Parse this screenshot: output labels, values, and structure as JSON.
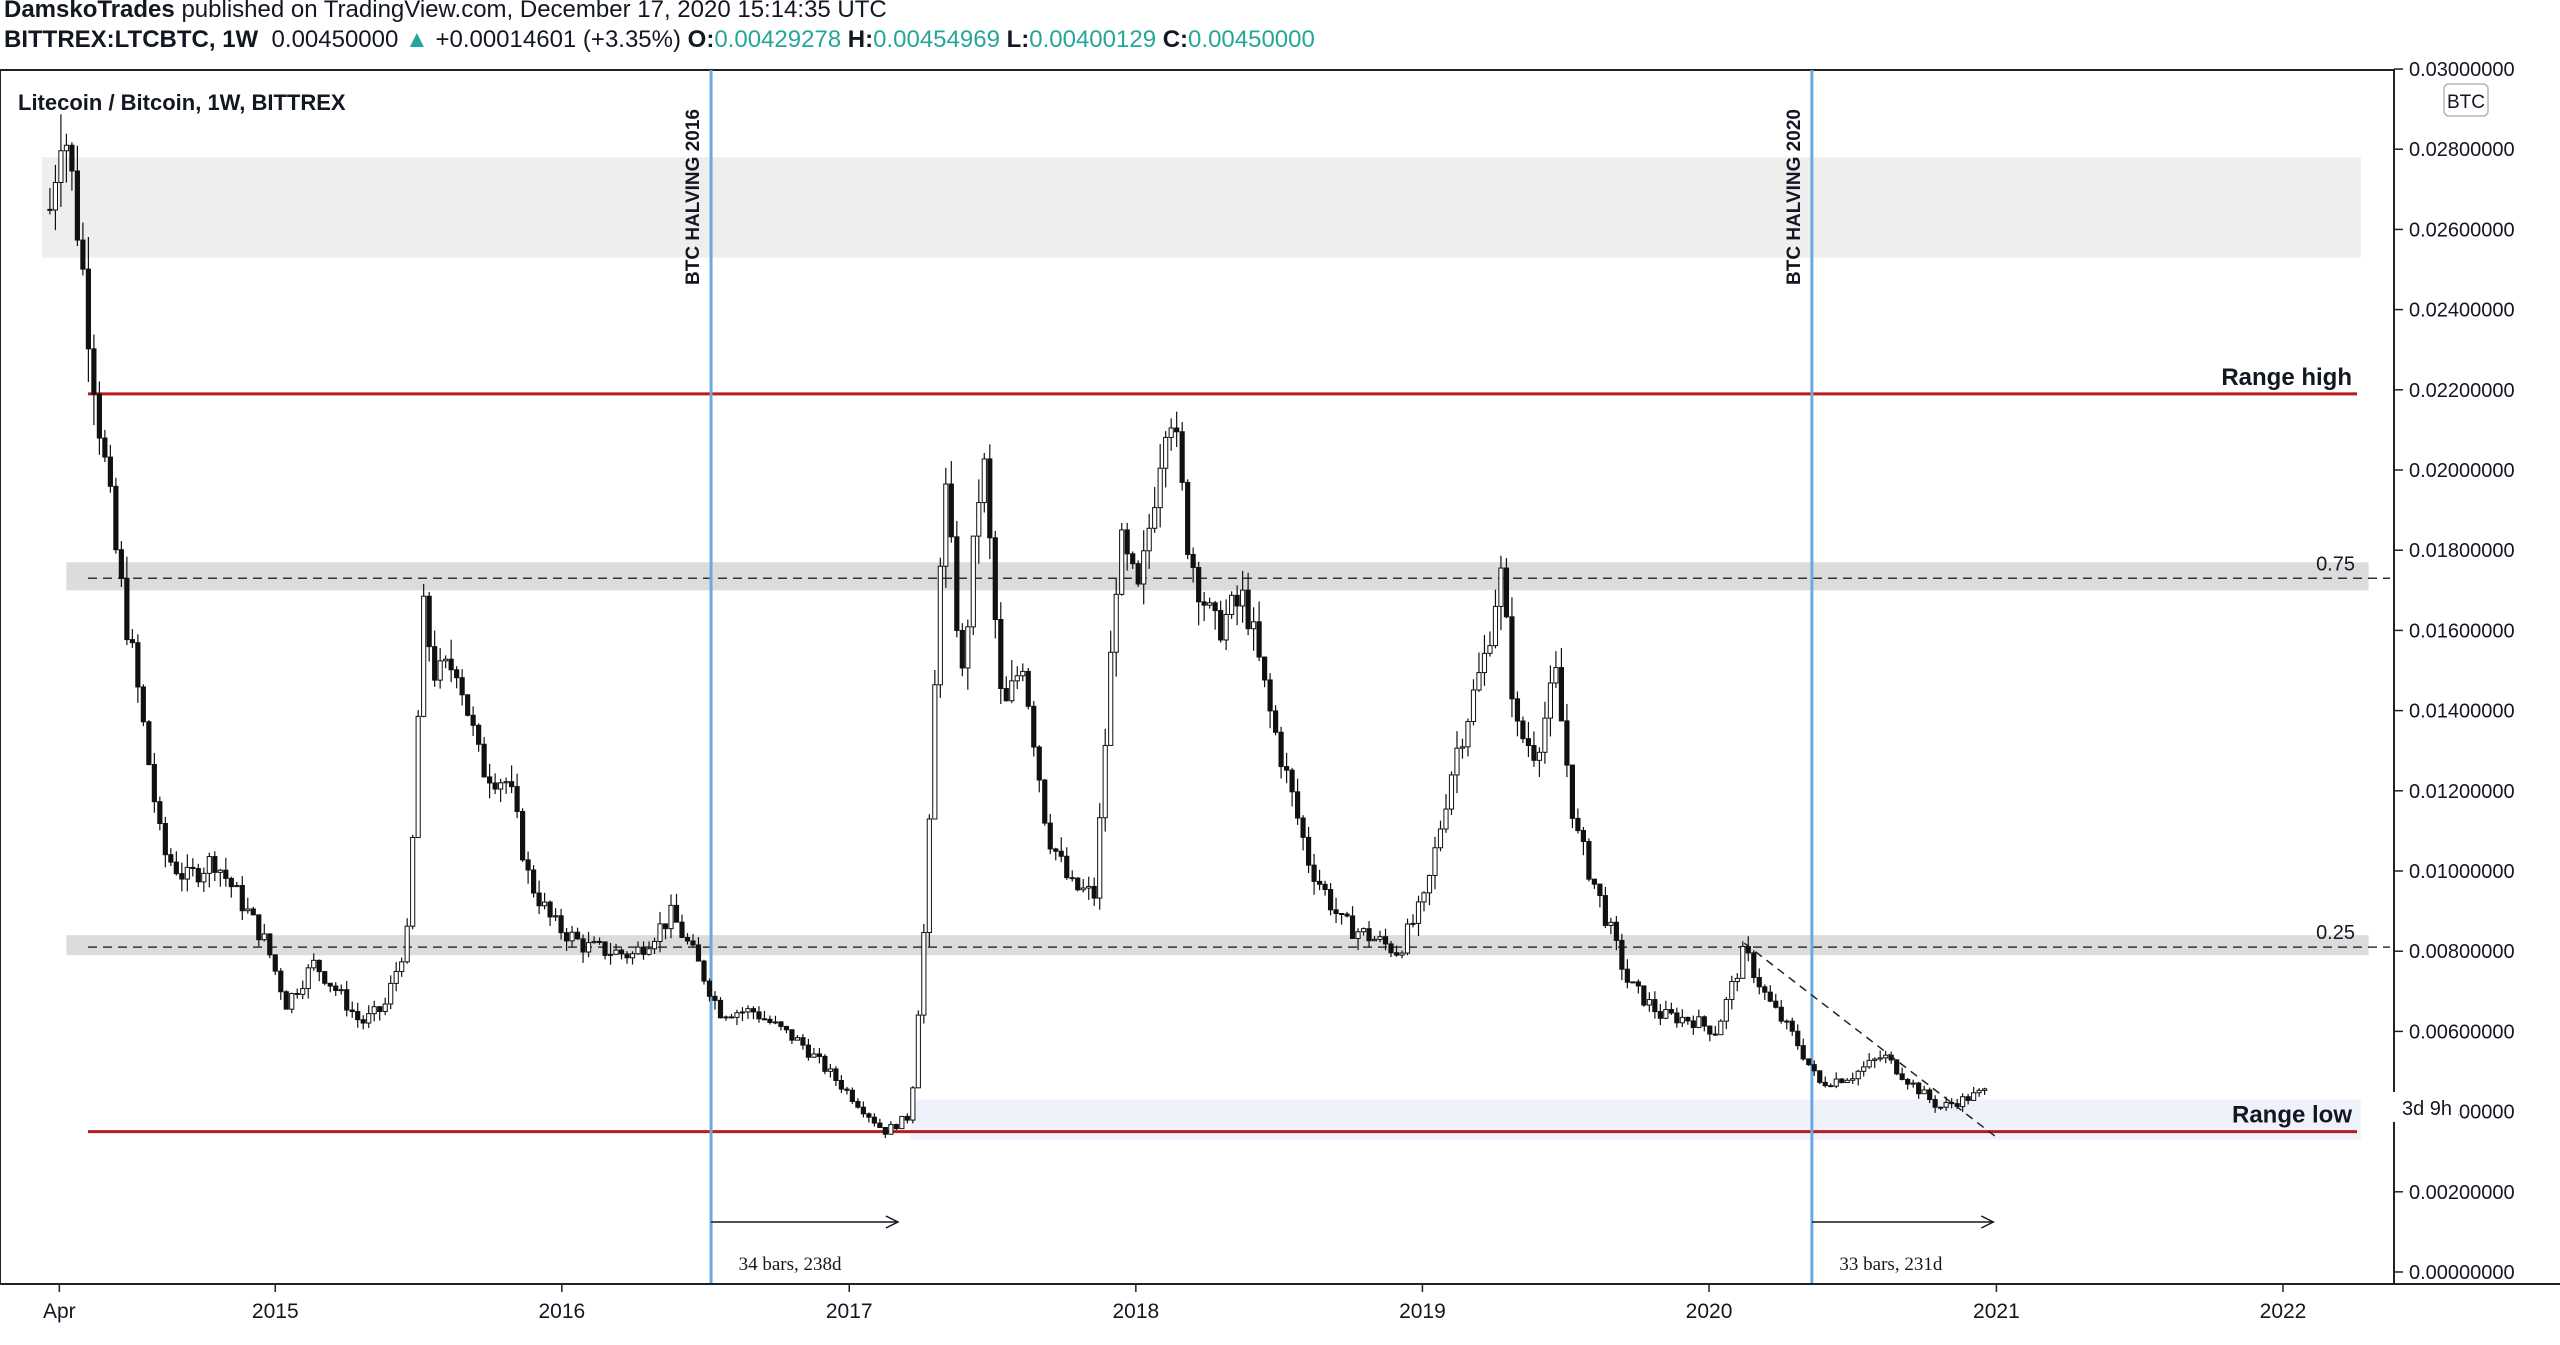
{
  "header": {
    "author": "DamskoTrades",
    "published": "published on TradingView.com, December 17, 2020 15:14:35 UTC",
    "symbol": "BITTREX:LTCBTC, 1W",
    "last": "0.00450000",
    "change_arrow": "▲",
    "change": "+0.00014601 (+3.35%)",
    "o_label": "O:",
    "o": "0.00429278",
    "h_label": "H:",
    "h": "0.00454969",
    "l_label": "L:",
    "l": "0.00400129",
    "c_label": "C:",
    "c": "0.00450000",
    "up_color": "#26a69a"
  },
  "chart_data": {
    "type": "candlestick",
    "title": "Litecoin / Bitcoin, 1W, BITTREX",
    "currency_badge": "BTC",
    "countdown": "3d 9h",
    "x_tick_labels": [
      "Apr",
      "2015",
      "2016",
      "2017",
      "2018",
      "2019",
      "2020",
      "2021",
      "2022"
    ],
    "y_tick_labels": [
      "0.03000000",
      "0.02800000",
      "0.02600000",
      "0.02400000",
      "0.02200000",
      "0.02000000",
      "0.01800000",
      "0.01600000",
      "0.01400000",
      "0.01200000",
      "0.01000000",
      "0.00800000",
      "0.00600000",
      "0.00400000",
      "0.00200000",
      "0.00000000"
    ],
    "ylim": [
      -0.0002,
      0.0303
    ],
    "price_series": [
      [
        "2014-03-20",
        0.0265
      ],
      [
        "2014-04-05",
        0.029
      ],
      [
        "2014-04-25",
        0.026
      ],
      [
        "2014-05-20",
        0.0215
      ],
      [
        "2014-06-15",
        0.0175
      ],
      [
        "2014-07-10",
        0.0145
      ],
      [
        "2014-08-10",
        0.0105
      ],
      [
        "2014-09-10",
        0.0098
      ],
      [
        "2014-10-15",
        0.0103
      ],
      [
        "2014-11-20",
        0.0092
      ],
      [
        "2014-12-20",
        0.0082
      ],
      [
        "2015-01-15",
        0.0067
      ],
      [
        "2015-02-20",
        0.0077
      ],
      [
        "2015-03-25",
        0.0069
      ],
      [
        "2015-04-20",
        0.0062
      ],
      [
        "2015-05-20",
        0.0066
      ],
      [
        "2015-06-20",
        0.0085
      ],
      [
        "2015-07-08",
        0.0165
      ],
      [
        "2015-07-25",
        0.0148
      ],
      [
        "2015-08-20",
        0.0152
      ],
      [
        "2015-09-20",
        0.0126
      ],
      [
        "2015-10-25",
        0.0122
      ],
      [
        "2015-11-20",
        0.0098
      ],
      [
        "2015-12-20",
        0.0087
      ],
      [
        "2016-02-01",
        0.0081
      ],
      [
        "2016-04-01",
        0.0079
      ],
      [
        "2016-05-20",
        0.0089
      ],
      [
        "2016-06-20",
        0.0078
      ],
      [
        "2016-07-20",
        0.0065
      ],
      [
        "2016-09-01",
        0.0065
      ],
      [
        "2016-11-01",
        0.0057
      ],
      [
        "2016-12-15",
        0.0048
      ],
      [
        "2017-02-15",
        0.0035
      ],
      [
        "2017-03-20",
        0.0039
      ],
      [
        "2017-04-10",
        0.0095
      ],
      [
        "2017-05-01",
        0.02
      ],
      [
        "2017-05-25",
        0.0148
      ],
      [
        "2017-06-20",
        0.0205
      ],
      [
        "2017-07-15",
        0.0138
      ],
      [
        "2017-08-10",
        0.0153
      ],
      [
        "2017-09-10",
        0.011
      ],
      [
        "2017-10-10",
        0.0096
      ],
      [
        "2017-11-10",
        0.0094
      ],
      [
        "2017-12-10",
        0.0182
      ],
      [
        "2018-01-05",
        0.0168
      ],
      [
        "2018-02-12",
        0.022
      ],
      [
        "2018-03-10",
        0.018
      ],
      [
        "2018-04-10",
        0.016
      ],
      [
        "2018-05-20",
        0.0168
      ],
      [
        "2018-06-20",
        0.014
      ],
      [
        "2018-08-10",
        0.0102
      ],
      [
        "2018-09-20",
        0.0087
      ],
      [
        "2018-11-01",
        0.0083
      ],
      [
        "2018-12-01",
        0.008
      ],
      [
        "2019-01-05",
        0.0093
      ],
      [
        "2019-02-10",
        0.0128
      ],
      [
        "2019-03-20",
        0.0152
      ],
      [
        "2019-04-10",
        0.0175
      ],
      [
        "2019-05-01",
        0.0135
      ],
      [
        "2019-05-25",
        0.013
      ],
      [
        "2019-06-20",
        0.0148
      ],
      [
        "2019-07-15",
        0.011
      ],
      [
        "2019-08-20",
        0.009
      ],
      [
        "2019-09-20",
        0.0072
      ],
      [
        "2019-11-01",
        0.0064
      ],
      [
        "2019-12-10",
        0.0063
      ],
      [
        "2020-01-10",
        0.006
      ],
      [
        "2020-02-15",
        0.008
      ],
      [
        "2020-03-15",
        0.0068
      ],
      [
        "2020-04-20",
        0.0058
      ],
      [
        "2020-05-20",
        0.0047
      ],
      [
        "2020-07-01",
        0.0049
      ],
      [
        "2020-08-10",
        0.0054
      ],
      [
        "2020-09-15",
        0.0047
      ],
      [
        "2020-10-20",
        0.0041
      ],
      [
        "2020-11-20",
        0.0043
      ],
      [
        "2020-12-17",
        0.0045
      ]
    ],
    "horizontal_lines": [
      {
        "label": "Range high",
        "value": 0.0219,
        "color": "#b71c1c"
      },
      {
        "label": "Range low",
        "value": 0.0035,
        "color": "#b71c1c"
      }
    ],
    "fib_levels": [
      {
        "label": "0.75",
        "value": 0.0173
      },
      {
        "label": "0.25",
        "value": 0.0081
      }
    ],
    "zones": [
      {
        "from": 0.0253,
        "to": 0.0278,
        "x_from": "2014-03-10",
        "x_to": "2022-04-10",
        "color": "#eeeeee"
      },
      {
        "from": 0.017,
        "to": 0.0177,
        "x_from": "2014-04-10",
        "x_to": "2022-04-20",
        "color": "#dcdcdc"
      },
      {
        "from": 0.0079,
        "to": 0.0084,
        "x_from": "2014-04-10",
        "x_to": "2022-04-20",
        "color": "#dcdcdc"
      },
      {
        "from": 0.0033,
        "to": 0.0043,
        "x_from": "2017-03-20",
        "x_to": "2022-04-10",
        "color": "#eef3fb"
      }
    ],
    "vertical_lines": [
      {
        "label": "BTC HALVING 2016",
        "date": "2016-07-09",
        "color": "#6fa8dc"
      },
      {
        "label": "BTC HALVING 2020",
        "date": "2020-05-11",
        "color": "#6fa8dc"
      }
    ],
    "duration_arrows": [
      {
        "from": "2016-07-09",
        "to": "2017-03-04",
        "label": "34 bars, 238d"
      },
      {
        "from": "2020-05-11",
        "to": "2020-12-28",
        "label": "33 bars, 231d"
      }
    ],
    "trendline": {
      "from": [
        "2020-02-15",
        0.0082
      ],
      "to": [
        "2021-01-05",
        0.0033
      ]
    }
  }
}
